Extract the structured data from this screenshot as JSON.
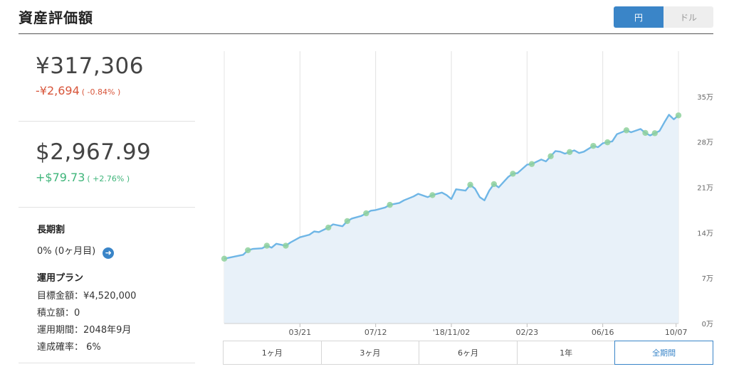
{
  "header": {
    "title": "資産評価額"
  },
  "currency_toggle": {
    "yen_label": "円",
    "dollar_label": "ドル",
    "selected": "円"
  },
  "summary": {
    "yen_total": "¥317,306",
    "yen_change": "-¥2,694",
    "yen_change_pct": "( -0.84% )",
    "usd_total": "$2,967.99",
    "usd_change": "+$79.73",
    "usd_change_pct": "( +2.76% )"
  },
  "long_term": {
    "label": "長期割",
    "value": "0% (0ヶ月目)"
  },
  "plan": {
    "label": "運用プラン",
    "target": "目標金額：¥4,520,000",
    "monthly": "積立額：0",
    "period": "運用期間：2048年9月",
    "probability": "達成確率： 6%"
  },
  "range_tabs": {
    "items": [
      "1ヶ月",
      "3ヶ月",
      "6ヶ月",
      "1年",
      "全期間"
    ],
    "selected": "全期間"
  },
  "colors": {
    "accent": "#3a85c8",
    "negative": "#d8553a",
    "positive": "#3fb57a",
    "line": "#6fb6e6",
    "fill": "#e8f1f9",
    "marker": "#8fd19c"
  },
  "chart_data": {
    "type": "area",
    "y_ticks": [
      "0万",
      "7万",
      "14万",
      "21万",
      "28万",
      "35万"
    ],
    "y_tick_values": [
      0,
      7,
      14,
      21,
      28,
      35
    ],
    "ylim": [
      0,
      42
    ],
    "x_ticks": [
      "03/21",
      "07/12",
      "'18/11/02",
      "02/23",
      "06/16",
      "10/07"
    ],
    "x_tick_positions": [
      16,
      32,
      48,
      64,
      80,
      95.5
    ],
    "xlim": [
      0,
      96
    ],
    "series": [
      {
        "x": [
          0,
          2,
          4,
          5,
          6,
          8,
          9,
          10,
          11,
          13,
          14,
          16,
          18,
          19,
          20,
          22,
          23,
          25,
          26,
          27,
          29,
          31,
          32,
          34,
          35,
          37,
          38,
          40,
          41,
          43,
          44,
          46,
          47,
          48,
          49,
          51,
          52,
          53,
          54,
          55,
          56,
          57,
          58,
          60,
          61,
          62,
          64,
          65,
          67,
          68,
          70,
          71,
          72,
          74,
          75,
          76,
          78,
          79,
          80,
          82,
          83,
          85,
          86,
          88,
          89,
          90,
          92,
          93,
          94,
          95,
          96
        ],
        "values": [
          10.0,
          10.3,
          10.6,
          11.3,
          11.5,
          11.6,
          12.0,
          11.7,
          12.3,
          12.0,
          12.5,
          13.3,
          13.7,
          14.2,
          14.1,
          14.8,
          15.3,
          15.0,
          15.8,
          16.2,
          16.6,
          17.4,
          17.5,
          17.9,
          18.3,
          18.6,
          19.0,
          19.6,
          20.0,
          19.5,
          19.8,
          20.2,
          19.8,
          19.2,
          20.7,
          20.5,
          21.4,
          20.8,
          19.5,
          19.0,
          20.5,
          21.5,
          21.0,
          22.6,
          23.1,
          23.2,
          24.5,
          24.6,
          25.3,
          25.0,
          26.6,
          26.5,
          26.2,
          26.7,
          26.3,
          26.5,
          27.4,
          27.2,
          27.8,
          28.1,
          29.2,
          29.8,
          29.5,
          30.0,
          29.4,
          29.0,
          29.7,
          31.0,
          32.2,
          31.5,
          32.1
        ]
      }
    ],
    "markers_x": [
      0,
      5,
      9,
      13,
      22,
      26,
      30,
      35,
      44,
      52,
      57,
      61,
      65,
      69,
      73,
      78,
      81,
      85,
      89,
      91,
      96
    ]
  }
}
